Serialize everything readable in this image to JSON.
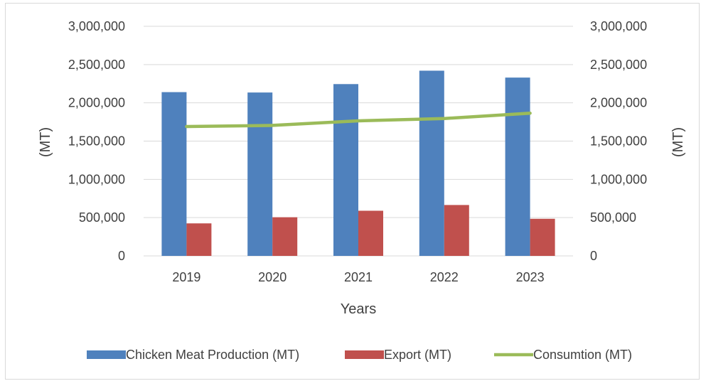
{
  "chart_data": {
    "type": "bar",
    "categories": [
      "2019",
      "2020",
      "2021",
      "2022",
      "2023"
    ],
    "series": [
      {
        "name": "Chicken Meat Production (MT)",
        "kind": "bar",
        "axis": "left",
        "color": "#4f81bd",
        "values": [
          2140000,
          2135000,
          2245000,
          2420000,
          2330000
        ]
      },
      {
        "name": "Export (MT)",
        "kind": "bar",
        "axis": "left",
        "color": "#c0504d",
        "values": [
          425000,
          505000,
          590000,
          665000,
          485000
        ]
      },
      {
        "name": "Consumtion (MT)",
        "kind": "line",
        "axis": "right",
        "color": "#9bbb59",
        "values": [
          1690000,
          1705000,
          1765000,
          1795000,
          1865000
        ]
      }
    ],
    "xlabel": "Years",
    "ylabel_left": "(MT)",
    "ylabel_right": "(MT)",
    "ylim": [
      0,
      3000000
    ],
    "y_ticks": [
      "0",
      "500,000",
      "1,000,000",
      "1,500,000",
      "2,000,000",
      "2,500,000",
      "3,000,000"
    ],
    "grid": true,
    "legend_position": "bottom"
  }
}
